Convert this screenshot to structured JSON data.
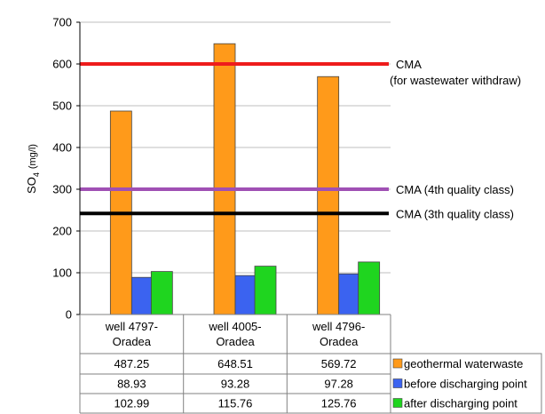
{
  "chart_data": {
    "type": "bar",
    "ylabel": "SO",
    "ylabel_sub": "4",
    "ylabel_unit": "(mg/l)",
    "ylim": [
      0,
      700
    ],
    "yticks": [
      "0",
      "100",
      "200",
      "300",
      "400",
      "500",
      "600",
      "700"
    ],
    "grid": true,
    "categories": [
      {
        "line1": "well  4797-",
        "line2": "Oradea"
      },
      {
        "line1": "well  4005-",
        "line2": "Oradea"
      },
      {
        "line1": "well  4796-",
        "line2": "Oradea"
      }
    ],
    "series": [
      {
        "name": "geothermal waterwaste",
        "color": "#ff9a1a",
        "values": [
          487.25,
          648.51,
          569.72
        ],
        "labels": [
          "487.25",
          "648.51",
          "569.72"
        ]
      },
      {
        "name": "before discharging point",
        "color": "#3b63f0",
        "values": [
          88.93,
          93.28,
          97.28
        ],
        "labels": [
          "88.93",
          "93.28",
          "97.28"
        ]
      },
      {
        "name": "after discharging point",
        "color": "#1fd51f",
        "values": [
          102.99,
          115.76,
          125.76
        ],
        "labels": [
          "102.99",
          "115.76",
          "125.76"
        ]
      }
    ],
    "reference_lines": [
      {
        "value": 600,
        "color": "#ee1c1c",
        "label": "CMA",
        "label2": "(for wastewater withdraw)"
      },
      {
        "value": 300,
        "color": "#a050b4",
        "label": "CMA  (4th quality class)",
        "label2": ""
      },
      {
        "value": 242,
        "color": "#000000",
        "label": "CMA  (3th quality class)",
        "label2": ""
      }
    ]
  }
}
